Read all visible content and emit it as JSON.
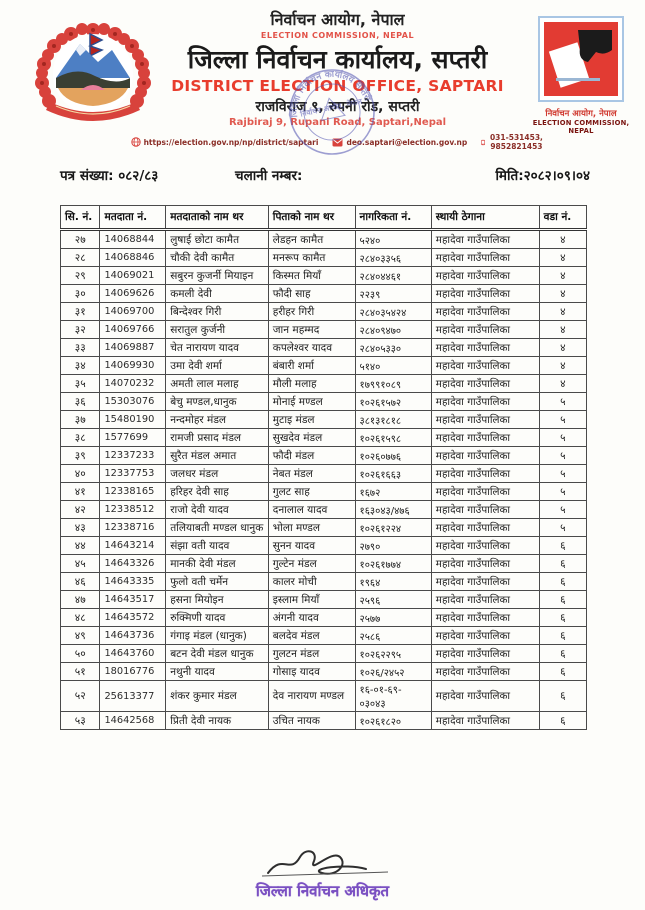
{
  "header": {
    "np_commission": "निर्वाचन आयोग, नेपाल",
    "en_commission": "ELECTION COMMISSION, NEPAL",
    "np_office": "जिल्ला निर्वाचन कार्यालय, सप्तरी",
    "en_office": "DISTRICT ELECTION OFFICE, SAPTARI",
    "np_address": "राजविराज ९, रुपनी रोड, सप्तरी",
    "en_address": "Rajbiraj 9, Rupani Road, Saptari,Nepal",
    "website": "https://election.gov.np/np/district/saptari",
    "email": "deo.saptari@election.gov.np",
    "phone": "031-531453, 9852821453",
    "right_logo_caption_np": "निर्वाचन आयोग, नेपाल",
    "right_logo_caption_en": "ELECTION COMMISSION, NEPAL"
  },
  "stamp": {
    "ring_text": "जिल्ला निर्वाचन कार्यालय सप्तरी",
    "center_text": "निर्वाचन आयोग, नेपाल"
  },
  "meta": {
    "letter_no": "पत्र संख्या: ०८२/८३",
    "dispatch_no": "चलानी नम्बर:",
    "date": "मिति:२०८२।०९।०४"
  },
  "table": {
    "columns": [
      "सि. नं.",
      "मतदाता नं.",
      "मतदाताको नाम थर",
      "पिताको नाम थर",
      "नागरिकता नं.",
      "स्थायी ठेगाना",
      "वडा नं."
    ],
    "rows": [
      [
        "२७",
        "14068844",
        "लुषाई छोटा कामैत",
        "लेडहन कामैत",
        "५२४०",
        "महादेवा गाउँपालिका",
        "४"
      ],
      [
        "२८",
        "14068846",
        "चौकी देवी कामैत",
        "मनरूप कामैत",
        "२८४०३३५६",
        "महादेवा गाउँपालिका",
        "४"
      ],
      [
        "२९",
        "14069021",
        "सबुरन कुजर्नी मियाइन",
        "किस्मत मियाँ",
        "२८४०४४६१",
        "महादेवा गाउँपालिका",
        "४"
      ],
      [
        "३०",
        "14069626",
        "कमली देवी",
        "फौदी साह",
        "२२३९",
        "महादेवा गाउँपालिका",
        "४"
      ],
      [
        "३१",
        "14069700",
        "बिन्देश्वर गिरी",
        "हरीहर गिरी",
        "२८४०३५४२४",
        "महादेवा गाउँपालिका",
        "४"
      ],
      [
        "३२",
        "14069766",
        "सरातुल कुर्जनी",
        "जान महम्मद",
        "२८४०९४७०",
        "महादेवा गाउँपालिका",
        "४"
      ],
      [
        "३३",
        "14069887",
        "चेत नारायण यादव",
        "कपलेश्वर यादव",
        "२८४०५३३०",
        "महादेवा गाउँपालिका",
        "४"
      ],
      [
        "३४",
        "14069930",
        "उमा देवी शर्मा",
        "बंबारी शर्मा",
        "५१४०",
        "महादेवा गाउँपालिका",
        "४"
      ],
      [
        "३५",
        "14070232",
        "अमती लाल मलाह",
        "मौली मलाह",
        "१७९९१०८९",
        "महादेवा गाउँपालिका",
        "४"
      ],
      [
        "३६",
        "15303076",
        "बेचु मण्डल,धानुक",
        "मोनाई मण्डल",
        "१०२६१५७२",
        "महादेवा गाउँपालिका",
        "५"
      ],
      [
        "३७",
        "15480190",
        "नन्दमोहर मंडल",
        "मुटाइ मंडल",
        "३८१३१८१८",
        "महादेवा गाउँपालिका",
        "५"
      ],
      [
        "३८",
        "1577699",
        "रामजी प्रसाद मंडल",
        "सुखदेव मंडल",
        "१०२६१५९८",
        "महादेवा गाउँपालिका",
        "५"
      ],
      [
        "३९",
        "12337233",
        "सुरैत मंडल अमात",
        "फौदी मंडल",
        "१०२६०७७६",
        "महादेवा गाउँपालिका",
        "५"
      ],
      [
        "४०",
        "12337753",
        "जलधर मंडल",
        "नेबत मंडल",
        "१०२६१६६३",
        "महादेवा गाउँपालिका",
        "५"
      ],
      [
        "४१",
        "12338165",
        "हरिहर देवी साह",
        "गुलट साह",
        "१६७२",
        "महादेवा गाउँपालिका",
        "५"
      ],
      [
        "४२",
        "12338512",
        "राजो देवी यादव",
        "दनालाल यादव",
        "१६३०४३/४७६",
        "महादेवा गाउँपालिका",
        "५"
      ],
      [
        "४३",
        "12338716",
        "तलियाबती मण्डल धानुक",
        "भोला मण्डल",
        "१०२६१२२४",
        "महादेवा गाउँपालिका",
        "५"
      ],
      [
        "४४",
        "14643214",
        "संझा वती यादव",
        "सुनन यादव",
        "२७९०",
        "महादेवा गाउँपालिका",
        "६"
      ],
      [
        "४५",
        "14643326",
        "मानकी देवी मंडल",
        "गुल्टेन मंडल",
        "१०२६१७७४",
        "महादेवा गाउँपालिका",
        "६"
      ],
      [
        "४६",
        "14643335",
        "फुलो वती चर्मेन",
        "कालर मोची",
        "१९६४",
        "महादेवा गाउँपालिका",
        "६"
      ],
      [
        "४७",
        "14643517",
        "हसना मियोइन",
        "इस्लाम मियाँ",
        "२५९६",
        "महादेवा गाउँपालिका",
        "६"
      ],
      [
        "४८",
        "14643572",
        "रुक्मिणी यादव",
        "अंगनी यादव",
        "२५७७",
        "महादेवा गाउँपालिका",
        "६"
      ],
      [
        "४९",
        "14643736",
        "गंगाइ मंडल (धानुक)",
        "बलदेव मंडल",
        "२५८६",
        "महादेवा गाउँपालिका",
        "६"
      ],
      [
        "५०",
        "14643760",
        "बटन देवी मंडल धानुक",
        "गुलटन मंडल",
        "१०२६२२९५",
        "महादेवा गाउँपालिका",
        "६"
      ],
      [
        "५१",
        "18016776",
        "नथुनी यादव",
        "गोसाइ यादव",
        "१०२६/२४५२",
        "महादेवा गाउँपालिका",
        "६"
      ],
      [
        "५२",
        "25613377",
        "शंकर कुमार मंडल",
        "देव नारायण मण्डल",
        "१६-०१-६९-\n०३०४३",
        "महादेवा गाउँपालिका",
        "६"
      ],
      [
        "५३",
        "14642568",
        "प्रिती देवी नायक",
        "उचित नायक",
        "१०२६१८२०",
        "महादेवा गाउँपालिका",
        "६"
      ]
    ]
  },
  "footer": {
    "officer_title": "जिल्ला निर्वाचन अधिकृत"
  },
  "colors": {
    "accent_red": "#e83d2d",
    "stamp_blue": "#4f52b0",
    "officer_purple": "#7a50c2"
  }
}
